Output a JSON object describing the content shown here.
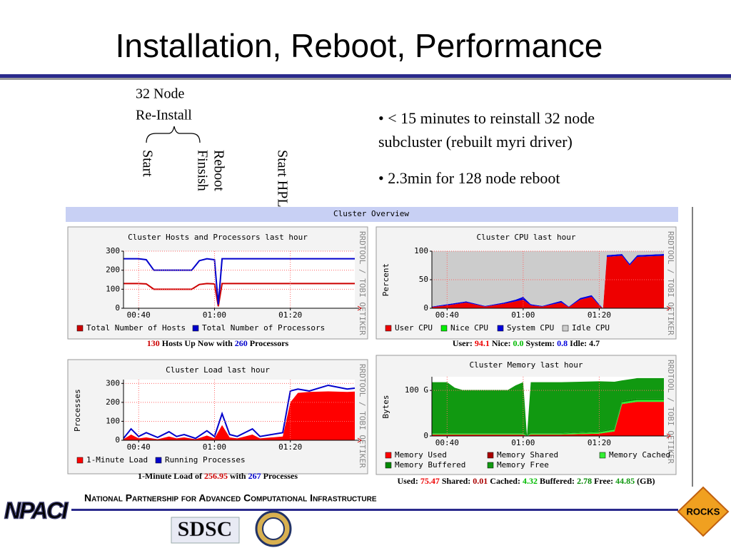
{
  "title": "Installation, Reboot, Performance",
  "annotations": {
    "nodes": "32 Node",
    "reinstall": "Re-Install",
    "start": "Start",
    "reboot": "Reboot",
    "finish": "Finsish",
    "start_hpl": "Start HPL"
  },
  "bullets": [
    [
      "• < 15 minutes to reinstall 32 node",
      "subcluster (rebuilt myri driver)"
    ],
    [
      "• 2.3min for 128 node reboot"
    ]
  ],
  "overview": "Cluster Overview",
  "watermark": "RRDTOOL / TOBI OETIKER",
  "chart_data": [
    {
      "type": "line",
      "title": "Cluster Hosts and Processors last hour",
      "x": [
        36,
        40,
        42,
        44,
        52,
        54,
        56,
        58,
        60,
        61,
        62,
        64,
        80,
        97
      ],
      "xlim": [
        36,
        97
      ],
      "xticks": [
        {
          "value": 40,
          "label": "00:40"
        },
        {
          "value": 60,
          "label": "01:00"
        },
        {
          "value": 80,
          "label": "01:20"
        }
      ],
      "ylim": [
        0,
        300
      ],
      "yticks": [
        0,
        100,
        200,
        300
      ],
      "grid": true,
      "series": [
        {
          "name": "Total Number of Hosts",
          "color": "#cc0000",
          "style": "line",
          "values": [
            130,
            130,
            128,
            100,
            100,
            100,
            125,
            130,
            128,
            10,
            130,
            130,
            130,
            130
          ]
        },
        {
          "name": "Total Number of Processors",
          "color": "#0000cc",
          "style": "line",
          "values": [
            260,
            260,
            255,
            200,
            200,
            200,
            250,
            260,
            255,
            20,
            260,
            260,
            260,
            260
          ]
        }
      ]
    },
    {
      "type": "stacked_area",
      "title": "Cluster CPU last hour",
      "ylabel": "Percent",
      "x": [
        36,
        40,
        45,
        50,
        55,
        58,
        60,
        62,
        65,
        70,
        72,
        75,
        78,
        80,
        81,
        82,
        86,
        88,
        90,
        97
      ],
      "xlim": [
        36,
        97
      ],
      "xticks": [
        {
          "value": 40,
          "label": "00:40"
        },
        {
          "value": 60,
          "label": "01:00"
        },
        {
          "value": 80,
          "label": "01:20"
        }
      ],
      "ylim": [
        0,
        100
      ],
      "yticks": [
        0,
        50,
        100
      ],
      "grid": true,
      "series": [
        {
          "name": "User CPU",
          "color": "#ee0000",
          "values": [
            2,
            5,
            10,
            3,
            8,
            12,
            15,
            5,
            3,
            10,
            2,
            15,
            20,
            5,
            0,
            90,
            92,
            75,
            90,
            92
          ]
        },
        {
          "name": "Nice CPU",
          "color": "#00ee00",
          "values": [
            0,
            0,
            0,
            0,
            0,
            0,
            0,
            0,
            0,
            0,
            0,
            0,
            0,
            0,
            0,
            0,
            0,
            0,
            0,
            0
          ]
        },
        {
          "name": "System CPU",
          "color": "#0000dd",
          "values": [
            1,
            2,
            2,
            1,
            2,
            3,
            5,
            2,
            1,
            3,
            1,
            3,
            3,
            2,
            0,
            3,
            3,
            3,
            3,
            3
          ]
        },
        {
          "name": "Idle CPU",
          "color": "#cccccc",
          "values": [
            97,
            93,
            88,
            96,
            90,
            85,
            80,
            93,
            96,
            87,
            97,
            82,
            77,
            93,
            100,
            7,
            5,
            22,
            7,
            5
          ]
        }
      ]
    },
    {
      "type": "line",
      "title": "Cluster Load last hour",
      "ylabel": "Processes",
      "x": [
        36,
        38,
        40,
        42,
        45,
        48,
        50,
        52,
        55,
        58,
        60,
        62,
        64,
        66,
        68,
        70,
        72,
        75,
        78,
        80,
        82,
        85,
        90,
        95,
        97
      ],
      "xlim": [
        36,
        97
      ],
      "xticks": [
        {
          "value": 40,
          "label": "00:40"
        },
        {
          "value": 60,
          "label": "01:00"
        },
        {
          "value": 80,
          "label": "01:20"
        }
      ],
      "ylim": [
        0,
        320
      ],
      "yticks": [
        0,
        100,
        200,
        300
      ],
      "grid": true,
      "series": [
        {
          "name": "1-Minute Load",
          "color": "#ff0000",
          "style": "area",
          "values": [
            5,
            30,
            10,
            15,
            5,
            20,
            10,
            15,
            5,
            25,
            10,
            80,
            15,
            10,
            20,
            30,
            10,
            15,
            20,
            200,
            250,
            255,
            258,
            255,
            257
          ]
        },
        {
          "name": "Running Processes",
          "color": "#0000cc",
          "style": "line",
          "values": [
            10,
            60,
            20,
            40,
            15,
            45,
            20,
            30,
            10,
            50,
            20,
            140,
            30,
            20,
            40,
            60,
            20,
            30,
            40,
            260,
            270,
            260,
            290,
            270,
            275
          ]
        }
      ]
    },
    {
      "type": "stacked_area",
      "title": "Cluster Memory last hour",
      "ylabel": "Bytes",
      "x": [
        36,
        40,
        42,
        44,
        50,
        56,
        58,
        60,
        61,
        62,
        64,
        70,
        80,
        84,
        86,
        90,
        97
      ],
      "xlim": [
        36,
        97
      ],
      "xticks": [
        {
          "value": 40,
          "label": "00:40"
        },
        {
          "value": 60,
          "label": "01:00"
        },
        {
          "value": 80,
          "label": "01:20"
        }
      ],
      "ylim": [
        0,
        130
      ],
      "yticks": [
        0,
        {
          "value": 100,
          "label": "100 G"
        }
      ],
      "grid": true,
      "series": [
        {
          "name": "Memory Used",
          "color": "#ff0000",
          "values": [
            3,
            3,
            3,
            3,
            3,
            3,
            3,
            3,
            0,
            3,
            3,
            3,
            5,
            10,
            70,
            75,
            75
          ]
        },
        {
          "name": "Memory Shared",
          "color": "#aa0000",
          "values": [
            0,
            0,
            0,
            0,
            0,
            0,
            0,
            0,
            0,
            0,
            0,
            0,
            0,
            0,
            0,
            0,
            0
          ]
        },
        {
          "name": "Memory Cached",
          "color": "#33ee33",
          "values": [
            2,
            2,
            2,
            2,
            2,
            2,
            2,
            2,
            0,
            2,
            2,
            2,
            3,
            4,
            4,
            4,
            4
          ]
        },
        {
          "name": "Memory Buffered",
          "color": "#008800",
          "values": [
            1,
            1,
            1,
            1,
            1,
            1,
            1,
            1,
            0,
            1,
            1,
            1,
            2,
            3,
            3,
            3,
            3
          ]
        },
        {
          "name": "Memory Free",
          "color": "#119911",
          "values": [
            112,
            112,
            100,
            95,
            95,
            95,
            105,
            112,
            0,
            112,
            112,
            112,
            110,
            102,
            45,
            45,
            45
          ]
        }
      ]
    }
  ],
  "captions": [
    [
      {
        "text": "130",
        "color": "#cc0000"
      },
      {
        "text": " Hosts Up Now with "
      },
      {
        "text": "260",
        "color": "#0000cc"
      },
      {
        "text": " Processors"
      }
    ],
    [
      {
        "text": "User: "
      },
      {
        "text": "94.1",
        "color": "#ee0000"
      },
      {
        "text": " Nice: "
      },
      {
        "text": "0.0",
        "color": "#00bb00"
      },
      {
        "text": " System: "
      },
      {
        "text": "0.8",
        "color": "#0000dd"
      },
      {
        "text": " Idle: 4.7"
      }
    ],
    [
      {
        "text": "1-Minute Load of "
      },
      {
        "text": "256.95",
        "color": "#cc0000"
      },
      {
        "text": " with "
      },
      {
        "text": "267",
        "color": "#0000cc"
      },
      {
        "text": " Processes"
      }
    ],
    [
      {
        "text": "Used: "
      },
      {
        "text": "75.47",
        "color": "#ee0000"
      },
      {
        "text": " Shared: "
      },
      {
        "text": "0.01",
        "color": "#aa0000"
      },
      {
        "text": " Cached: "
      },
      {
        "text": "4.32",
        "color": "#00bb00"
      },
      {
        "text": " Buffered: "
      },
      {
        "text": "2.78",
        "color": "#008800"
      },
      {
        "text": " Free: "
      },
      {
        "text": "44.85",
        "color": "#119911"
      },
      {
        "text": " (GB)"
      }
    ]
  ],
  "footer": {
    "text": "National Partnership for Advanced Computational Infrastructure",
    "npaci": "NPACI",
    "sdsc": "SDSC",
    "rocks": "ROCKS"
  }
}
